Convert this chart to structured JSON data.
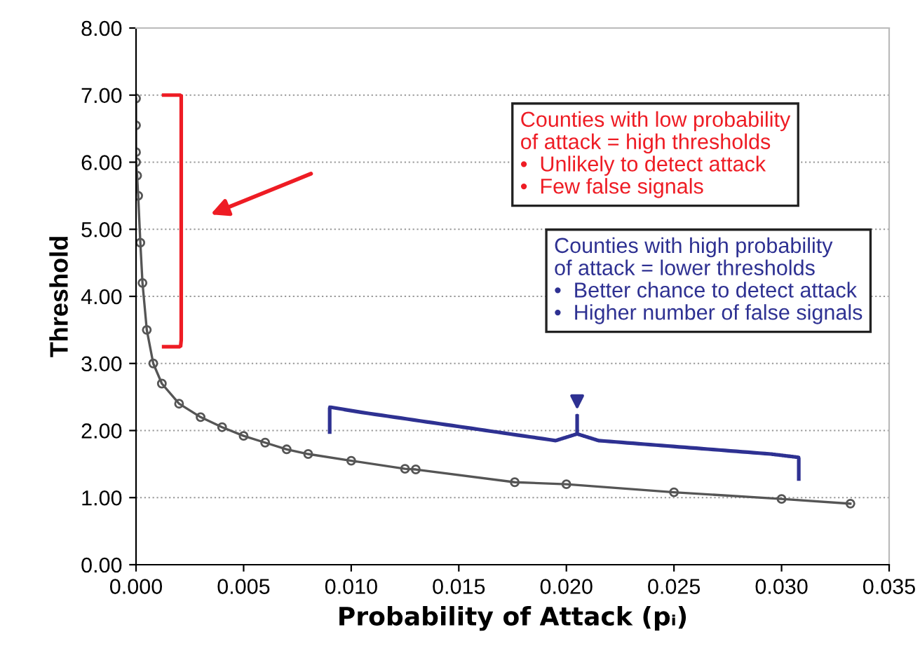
{
  "chart_data": {
    "type": "line",
    "xlabel": "Probability of Attack (pᵢ)",
    "ylabel": "Threshold",
    "x": [
      0.0,
      0.0,
      0.0,
      0.0,
      5e-05,
      0.0001,
      0.0002,
      0.0003,
      0.0005,
      0.0008,
      0.0012,
      0.002,
      0.003,
      0.004,
      0.005,
      0.006,
      0.007,
      0.008,
      0.01,
      0.0125,
      0.013,
      0.0176,
      0.02,
      0.025,
      0.03,
      0.0332
    ],
    "series": [
      {
        "color": "#555555",
        "values": [
          6.95,
          6.55,
          6.15,
          6.0,
          5.8,
          5.5,
          4.8,
          4.2,
          3.5,
          3.0,
          2.7,
          2.4,
          2.2,
          2.05,
          1.92,
          1.82,
          1.72,
          1.65,
          1.55,
          1.43,
          1.42,
          1.23,
          1.2,
          1.08,
          0.98,
          0.91
        ]
      }
    ],
    "xlim": [
      0,
      0.035
    ],
    "xticks": [
      {
        "value": 0,
        "label": "0.000"
      },
      {
        "value": 0.005,
        "label": "0.005"
      },
      {
        "value": 0.01,
        "label": "0.010"
      },
      {
        "value": 0.015,
        "label": "0.015"
      },
      {
        "value": 0.02,
        "label": "0.020"
      },
      {
        "value": 0.025,
        "label": "0.025"
      },
      {
        "value": 0.03,
        "label": "0.030"
      },
      {
        "value": 0.035,
        "label": "0.035"
      }
    ],
    "ylim": [
      0,
      8
    ],
    "yticks": [
      {
        "value": 0,
        "label": "0.00"
      },
      {
        "value": 1,
        "label": "1.00"
      },
      {
        "value": 2,
        "label": "2.00"
      },
      {
        "value": 3,
        "label": "3.00"
      },
      {
        "value": 4,
        "label": "4.00"
      },
      {
        "value": 5,
        "label": "5.00"
      },
      {
        "value": 6,
        "label": "6.00"
      },
      {
        "value": 7,
        "label": "7.00"
      },
      {
        "value": 8,
        "label": "8.00"
      }
    ],
    "grid": "y",
    "marker": "circle",
    "line_style": "solid",
    "legend": false,
    "annotations": [
      "Counties with low probability\nof attack = high thresholds\n•  Unlikely to detect attack\n•  Few false signals",
      "Counties with high probability\nof attack = lower thresholds\n•  Better chance to detect attack\n•  Higher number of false signals"
    ]
  }
}
